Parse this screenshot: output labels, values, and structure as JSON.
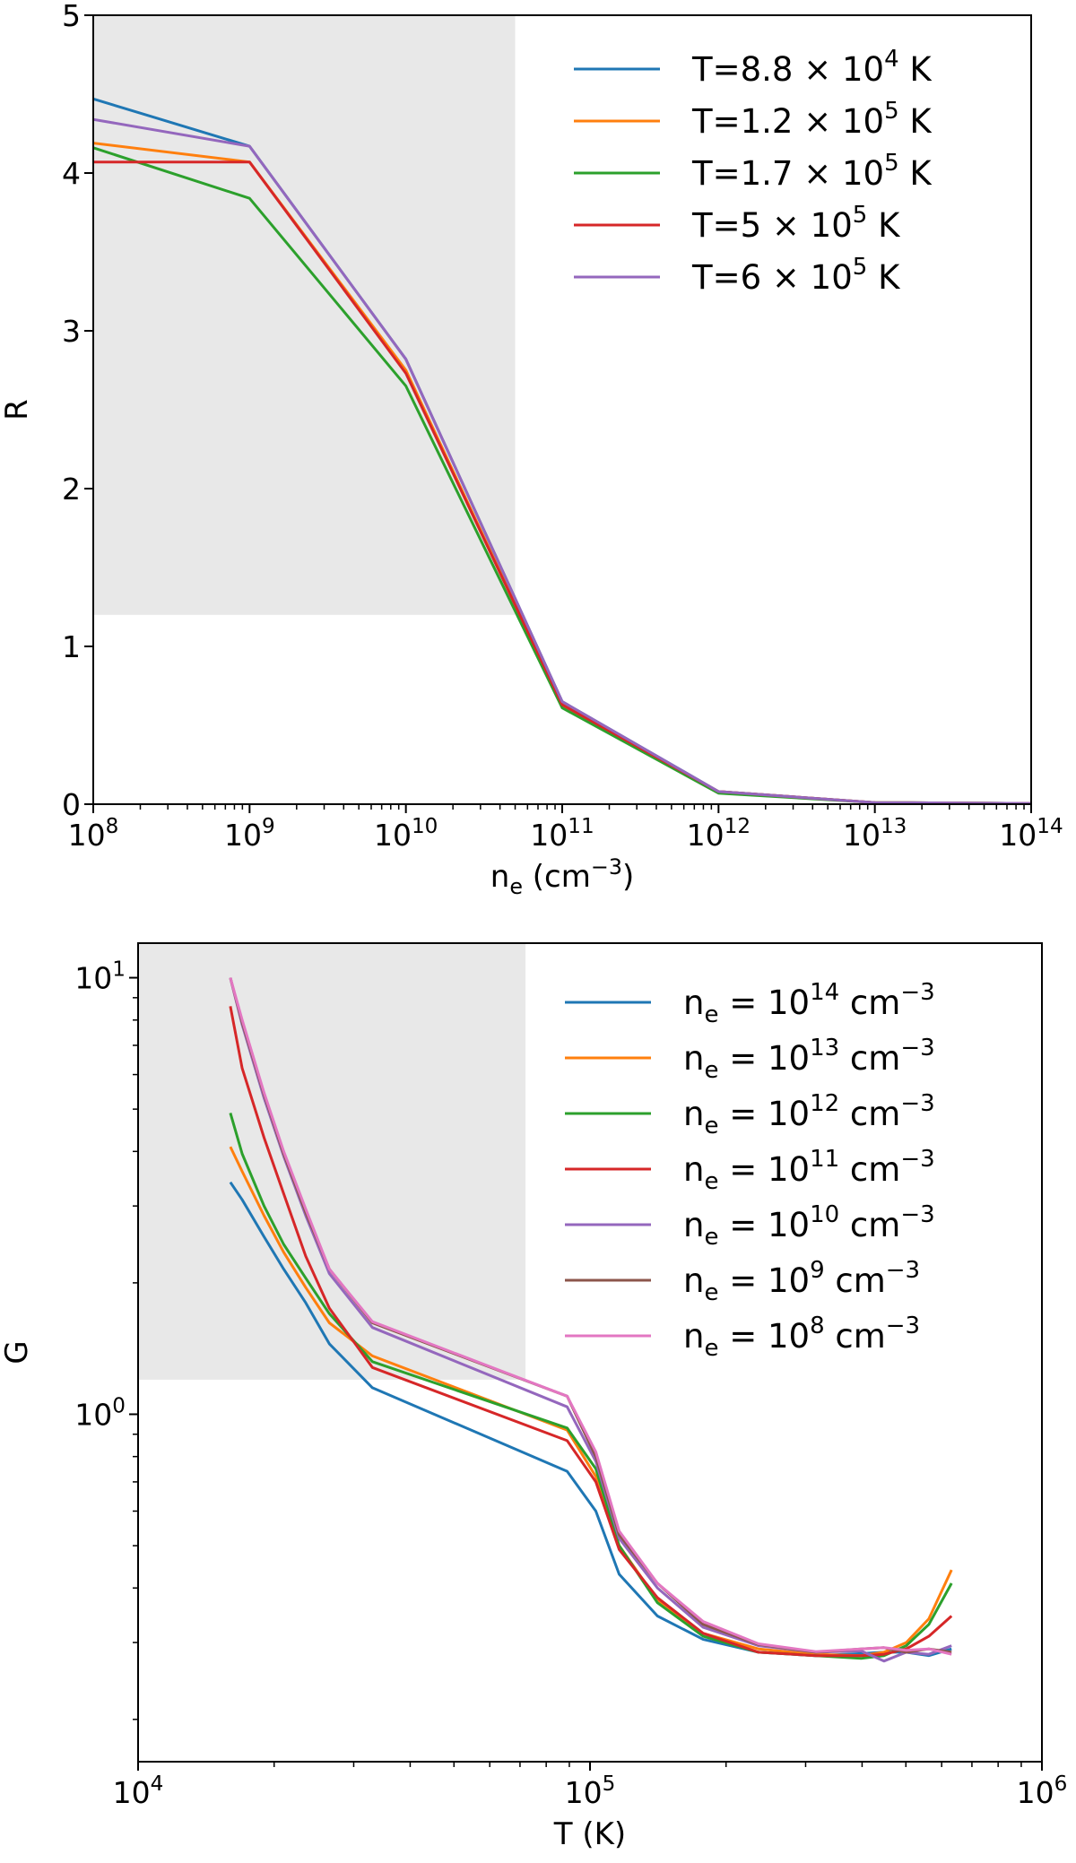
{
  "chart_data": [
    {
      "type": "line",
      "xscale": "log",
      "yscale": "linear",
      "xlim": [
        100000000.0,
        100000000000000.0
      ],
      "ylim": [
        0,
        5
      ],
      "xlabel": "n",
      "xlabel_sub": "e",
      "xlabel_unit_pre": "(cm",
      "xlabel_unit_sup": "−3",
      "xlabel_unit_post": ")",
      "ylabel": "R",
      "xticks": [
        {
          "value": 100000000.0,
          "base": "10",
          "exp": "8"
        },
        {
          "value": 1000000000.0,
          "base": "10",
          "exp": "9"
        },
        {
          "value": 10000000000.0,
          "base": "10",
          "exp": "10"
        },
        {
          "value": 100000000000.0,
          "base": "10",
          "exp": "11"
        },
        {
          "value": 1000000000000.0,
          "base": "10",
          "exp": "12"
        },
        {
          "value": 10000000000000.0,
          "base": "10",
          "exp": "13"
        },
        {
          "value": 100000000000000.0,
          "base": "10",
          "exp": "14"
        }
      ],
      "yticks": [
        {
          "value": 0,
          "label": "0"
        },
        {
          "value": 1,
          "label": "1"
        },
        {
          "value": 2,
          "label": "2"
        },
        {
          "value": 3,
          "label": "3"
        },
        {
          "value": 4,
          "label": "4"
        },
        {
          "value": 5,
          "label": "5"
        }
      ],
      "shaded_region": {
        "x": [
          100000000.0,
          50000000000.0
        ],
        "y": [
          1.2,
          5
        ]
      },
      "legend_position": "top-right",
      "x": [
        100000000.0,
        1000000000.0,
        10000000000.0,
        100000000000.0,
        1000000000000.0,
        10000000000000.0,
        100000000000000.0
      ],
      "series": [
        {
          "name_pre": "T=8.8",
          "name_mid": "× 10",
          "name_sup": "4",
          "name_post": " K",
          "color": "#1f77b4",
          "values": [
            4.47,
            4.17,
            2.82,
            0.65,
            0.08,
            0.01,
            0.005
          ]
        },
        {
          "name_pre": "T=1.2",
          "name_mid": "× 10",
          "name_sup": "5",
          "name_post": " K",
          "color": "#ff7f0e",
          "values": [
            4.19,
            4.07,
            2.75,
            0.63,
            0.08,
            0.01,
            0.005
          ]
        },
        {
          "name_pre": "T=1.7",
          "name_mid": "× 10",
          "name_sup": "5",
          "name_post": " K",
          "color": "#2ca02c",
          "values": [
            4.16,
            3.84,
            2.65,
            0.61,
            0.07,
            0.01,
            0.005
          ]
        },
        {
          "name_pre": "T=5",
          "name_mid": "× 10",
          "name_sup": "5",
          "name_post": " K",
          "color": "#d62728",
          "values": [
            4.07,
            4.07,
            2.73,
            0.63,
            0.08,
            0.01,
            0.005
          ]
        },
        {
          "name_pre": "T=6",
          "name_mid": "× 10",
          "name_sup": "5",
          "name_post": " K",
          "color": "#9467bd",
          "values": [
            4.34,
            4.17,
            2.82,
            0.65,
            0.08,
            0.01,
            0.005
          ]
        }
      ]
    },
    {
      "type": "line",
      "xscale": "log",
      "yscale": "log",
      "xlim": [
        10000.0,
        1000000.0
      ],
      "ylim": [
        0.16,
        12
      ],
      "xlabel": "T (K)",
      "ylabel": "G",
      "xticks": [
        {
          "value": 10000.0,
          "base": "10",
          "exp": "4"
        },
        {
          "value": 100000.0,
          "base": "10",
          "exp": "5"
        },
        {
          "value": 1000000.0,
          "base": "10",
          "exp": "6"
        }
      ],
      "yticks": [
        {
          "value": 1,
          "base": "10",
          "exp": "0"
        },
        {
          "value": 10,
          "base": "10",
          "exp": "1"
        }
      ],
      "shaded_region": {
        "x": [
          10000.0,
          72000.0
        ],
        "y": [
          1.2,
          12
        ]
      },
      "legend_position": "top-right",
      "x": [
        16000,
        17000,
        19000,
        21000,
        23500,
        26500,
        33000,
        89000,
        103000,
        116000,
        141000,
        178000,
        236000,
        316000,
        398000,
        447000,
        501000,
        562000,
        631000
      ],
      "series": [
        {
          "name_pre": "n",
          "name_sub": "e",
          "name_mid": " = 10",
          "name_sup": "14",
          "name_post": " cm",
          "name_sup2": "−3",
          "color": "#1f77b4",
          "values": [
            3.4,
            3.1,
            2.55,
            2.15,
            1.8,
            1.45,
            1.15,
            0.74,
            0.6,
            0.43,
            0.345,
            0.305,
            0.285,
            0.28,
            0.283,
            0.285,
            0.285,
            0.28,
            0.29
          ]
        },
        {
          "name_pre": "n",
          "name_sub": "e",
          "name_mid": " = 10",
          "name_sup": "13",
          "name_post": " cm",
          "name_sup2": "−3",
          "color": "#ff7f0e",
          "values": [
            4.1,
            3.6,
            2.85,
            2.35,
            1.95,
            1.62,
            1.36,
            0.92,
            0.72,
            0.5,
            0.375,
            0.315,
            0.29,
            0.282,
            0.28,
            0.285,
            0.3,
            0.34,
            0.44
          ]
        },
        {
          "name_pre": "n",
          "name_sub": "e",
          "name_mid": " = 10",
          "name_sup": "12",
          "name_post": " cm",
          "name_sup2": "−3",
          "color": "#2ca02c",
          "values": [
            4.9,
            3.95,
            3.0,
            2.45,
            2.05,
            1.7,
            1.32,
            0.93,
            0.75,
            0.5,
            0.37,
            0.31,
            0.285,
            0.28,
            0.276,
            0.28,
            0.295,
            0.33,
            0.41
          ]
        },
        {
          "name_pre": "n",
          "name_sub": "e",
          "name_mid": " = 10",
          "name_sup": "11",
          "name_post": " cm",
          "name_sup2": "−3",
          "color": "#d62728",
          "values": [
            8.6,
            6.2,
            4.3,
            3.2,
            2.3,
            1.75,
            1.28,
            0.87,
            0.7,
            0.49,
            0.38,
            0.315,
            0.285,
            0.28,
            0.28,
            0.282,
            0.29,
            0.31,
            0.345
          ]
        },
        {
          "name_pre": "n",
          "name_sub": "e",
          "name_mid": " = 10",
          "name_sup": "10",
          "name_post": " cm",
          "name_sup2": "−3",
          "color": "#9467bd",
          "values": [
            10.0,
            7.8,
            5.3,
            3.9,
            2.85,
            2.1,
            1.58,
            1.04,
            0.78,
            0.52,
            0.4,
            0.325,
            0.295,
            0.285,
            0.287,
            0.272,
            0.285,
            0.282,
            0.295
          ]
        },
        {
          "name_pre": "n",
          "name_sub": "e",
          "name_mid": " = 10",
          "name_sup": "9",
          "name_post": " cm",
          "name_sup2": "−3",
          "color": "#8c564b",
          "values": [
            10.0,
            7.9,
            5.4,
            3.95,
            2.9,
            2.15,
            1.62,
            1.1,
            0.8,
            0.53,
            0.41,
            0.33,
            0.297,
            0.285,
            0.29,
            0.292,
            0.285,
            0.29,
            0.285
          ]
        },
        {
          "name_pre": "n",
          "name_sub": "e",
          "name_mid": " = 10",
          "name_sup": "8",
          "name_post": " cm",
          "name_sup2": "−3",
          "color": "#e377c2",
          "values": [
            10.0,
            8.0,
            5.45,
            4.0,
            2.95,
            2.15,
            1.63,
            1.1,
            0.82,
            0.54,
            0.41,
            0.335,
            0.298,
            0.286,
            0.29,
            0.292,
            0.288,
            0.29,
            0.282
          ]
        }
      ]
    }
  ]
}
